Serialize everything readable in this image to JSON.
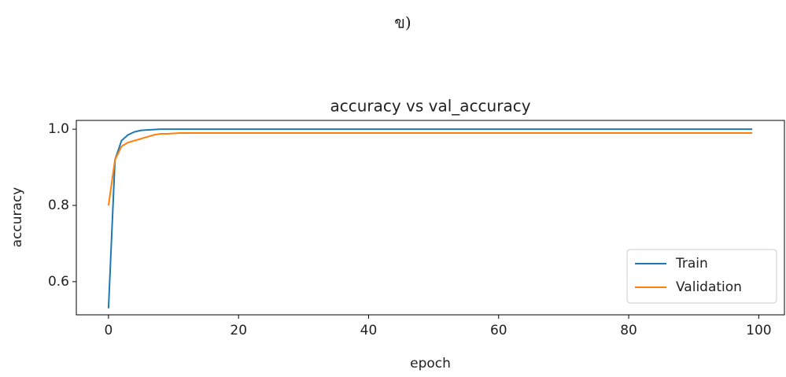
{
  "chart_data": {
    "type": "line",
    "label": "ข)",
    "title": "accuracy vs val_accuracy",
    "xlabel": "epoch",
    "ylabel": "accuracy",
    "x": [
      0,
      1,
      2,
      3,
      4,
      5,
      6,
      7,
      8,
      9,
      10,
      11,
      12,
      13,
      14,
      15,
      16,
      17,
      18,
      19,
      20,
      21,
      22,
      23,
      24,
      25,
      26,
      27,
      28,
      29,
      30,
      31,
      32,
      33,
      34,
      35,
      36,
      37,
      38,
      39,
      40,
      41,
      42,
      43,
      44,
      45,
      46,
      47,
      48,
      49,
      50,
      51,
      52,
      53,
      54,
      55,
      56,
      57,
      58,
      59,
      60,
      61,
      62,
      63,
      64,
      65,
      66,
      67,
      68,
      69,
      70,
      71,
      72,
      73,
      74,
      75,
      76,
      77,
      78,
      79,
      80,
      81,
      82,
      83,
      84,
      85,
      86,
      87,
      88,
      89,
      90,
      91,
      92,
      93,
      94,
      95,
      96,
      97,
      98,
      99
    ],
    "series": [
      {
        "name": "Train",
        "color": "#1f77b4",
        "values": [
          0.53,
          0.92,
          0.97,
          0.985,
          0.993,
          0.997,
          0.998,
          0.999,
          1,
          1,
          1,
          1,
          1,
          1,
          1,
          1,
          1,
          1,
          1,
          1,
          1,
          1,
          1,
          1,
          1,
          1,
          1,
          1,
          1,
          1,
          1,
          1,
          1,
          1,
          1,
          1,
          1,
          1,
          1,
          1,
          1,
          1,
          1,
          1,
          1,
          1,
          1,
          1,
          1,
          1,
          1,
          1,
          1,
          1,
          1,
          1,
          1,
          1,
          1,
          1,
          1,
          1,
          1,
          1,
          1,
          1,
          1,
          1,
          1,
          1,
          1,
          1,
          1,
          1,
          1,
          1,
          1,
          1,
          1,
          1,
          1,
          1,
          1,
          1,
          1,
          1,
          1,
          1,
          1,
          1,
          1,
          1,
          1,
          1,
          1,
          1,
          1,
          1,
          1,
          1
        ]
      },
      {
        "name": "Validation",
        "color": "#ff7f0e",
        "values": [
          0.8,
          0.92,
          0.955,
          0.965,
          0.97,
          0.975,
          0.98,
          0.985,
          0.988,
          0.988,
          0.989,
          0.99,
          0.99,
          0.99,
          0.99,
          0.99,
          0.99,
          0.99,
          0.99,
          0.99,
          0.99,
          0.99,
          0.99,
          0.99,
          0.99,
          0.99,
          0.99,
          0.99,
          0.99,
          0.99,
          0.99,
          0.99,
          0.99,
          0.99,
          0.99,
          0.99,
          0.99,
          0.99,
          0.99,
          0.99,
          0.99,
          0.99,
          0.99,
          0.99,
          0.99,
          0.99,
          0.99,
          0.99,
          0.99,
          0.99,
          0.99,
          0.99,
          0.99,
          0.99,
          0.99,
          0.99,
          0.99,
          0.99,
          0.99,
          0.99,
          0.99,
          0.99,
          0.99,
          0.99,
          0.99,
          0.99,
          0.99,
          0.99,
          0.99,
          0.99,
          0.99,
          0.99,
          0.99,
          0.99,
          0.99,
          0.99,
          0.99,
          0.99,
          0.99,
          0.99,
          0.99,
          0.99,
          0.99,
          0.99,
          0.99,
          0.99,
          0.99,
          0.99,
          0.99,
          0.99,
          0.99,
          0.99,
          0.99,
          0.99,
          0.99,
          0.99,
          0.99,
          0.99,
          0.99,
          0.99
        ]
      }
    ],
    "xlim": [
      -4.95,
      103.95
    ],
    "ylim": [
      0.513,
      1.023
    ],
    "xticks": [
      0,
      20,
      40,
      60,
      80,
      100
    ],
    "yticks": [
      0.6,
      0.8,
      {
        "value": 1,
        "label": "1.0"
      }
    ],
    "legend": "lower right"
  }
}
